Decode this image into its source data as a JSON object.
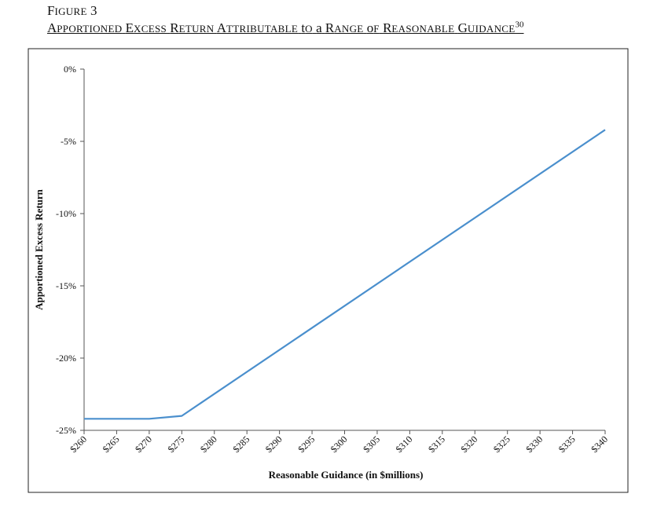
{
  "figure": {
    "label": "Figure 3",
    "title": "Apportioned Excess Return Attributable to a Range of Reasonable Guidance",
    "footnote": "30"
  },
  "chart_data": {
    "type": "line",
    "title": "Apportioned Excess Return Attributable to a Range of Reasonable Guidance",
    "xlabel": "Reasonable Guidance (in $millions)",
    "ylabel": "Apportioned Excess Return",
    "x_tick_labels": [
      "$260",
      "$265",
      "$270",
      "$275",
      "$280",
      "$285",
      "$290",
      "$295",
      "$300",
      "$305",
      "$310",
      "$315",
      "$320",
      "$325",
      "$330",
      "$335",
      "$340"
    ],
    "y_tick_labels": [
      "0%",
      "-5%",
      "-10%",
      "-15%",
      "-20%",
      "-25%"
    ],
    "y_ticks": [
      0,
      -5,
      -10,
      -15,
      -20,
      -25
    ],
    "xlim": [
      260,
      340
    ],
    "ylim": [
      -25,
      0
    ],
    "grid": false,
    "legend": "none",
    "series": [
      {
        "color": "#4a8fcd",
        "x": [
          260,
          270,
          275,
          340
        ],
        "y": [
          -24.2,
          -24.2,
          -24.0,
          -4.2
        ]
      }
    ]
  }
}
